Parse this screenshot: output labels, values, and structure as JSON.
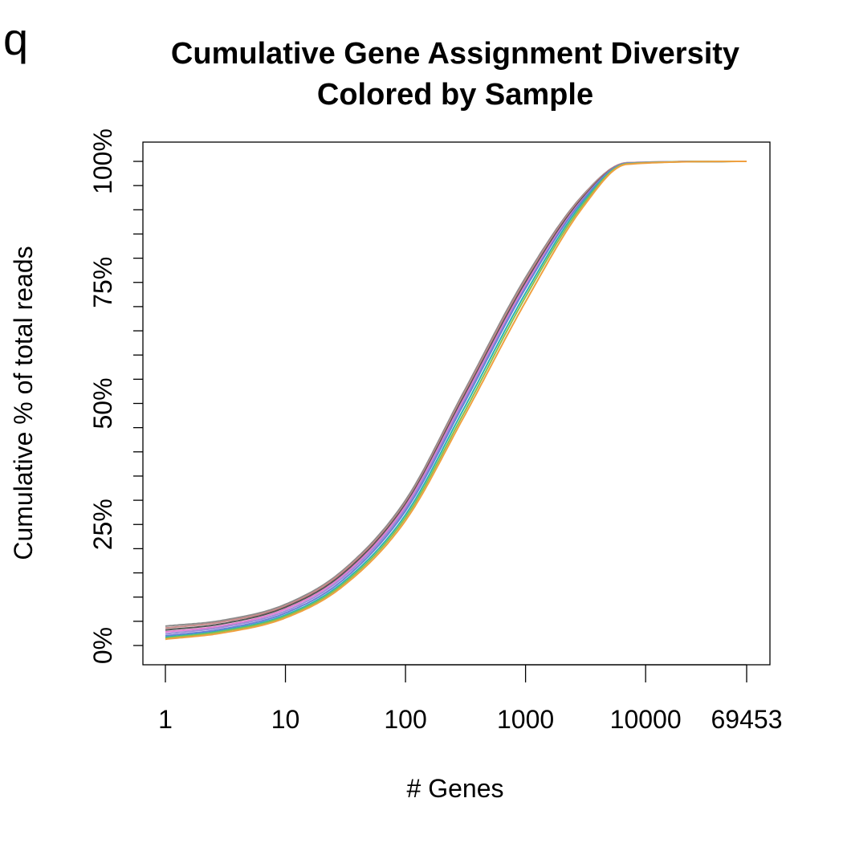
{
  "panel_label": "q",
  "chart_data": {
    "type": "line",
    "title": "Cumulative Gene Assignment Diversity",
    "subtitle": "Colored by Sample",
    "xlabel": "# Genes",
    "ylabel": "Cumulative % of total reads",
    "x_scale": "log",
    "xlim": [
      1,
      69453
    ],
    "ylim": [
      0,
      100
    ],
    "x_ticks": [
      1,
      10,
      100,
      1000,
      10000,
      69453
    ],
    "x_tick_labels": [
      "1",
      "10",
      "100",
      "1000",
      "10000",
      "69453"
    ],
    "y_ticks": [
      0,
      25,
      50,
      75,
      100
    ],
    "y_tick_labels": [
      "0%",
      "25%",
      "50%",
      "75%",
      "100%"
    ],
    "y_minor_ticks": [
      5,
      10,
      15,
      20,
      30,
      35,
      40,
      45,
      55,
      60,
      65,
      70,
      80,
      85,
      90,
      95
    ],
    "grid": false,
    "legend": "none",
    "series": [
      {
        "color": "#8c8c8c",
        "x": [
          1,
          3,
          10,
          30,
          100,
          300,
          1000,
          3000,
          7000,
          69453
        ],
        "y": [
          4.0,
          5.2,
          8.5,
          15.5,
          30.0,
          52.0,
          76.0,
          93.0,
          99.7,
          100
        ]
      },
      {
        "color": "#c98a8a",
        "x": [
          1,
          3,
          10,
          30,
          100,
          300,
          1000,
          3000,
          7000,
          69453
        ],
        "y": [
          3.6,
          4.9,
          8.2,
          15.2,
          29.5,
          51.5,
          75.5,
          92.8,
          99.7,
          100
        ]
      },
      {
        "color": "#555555",
        "x": [
          1,
          3,
          10,
          30,
          100,
          300,
          1000,
          3000,
          7000,
          69453
        ],
        "y": [
          3.2,
          4.5,
          7.9,
          14.8,
          29.2,
          51.0,
          75.0,
          92.5,
          99.6,
          100
        ]
      },
      {
        "color": "#e27bd0",
        "x": [
          1,
          3,
          10,
          30,
          100,
          300,
          1000,
          3000,
          7000,
          69453
        ],
        "y": [
          2.8,
          4.1,
          7.5,
          14.4,
          28.8,
          50.5,
          74.5,
          92.2,
          99.6,
          100
        ]
      },
      {
        "color": "#9a8cd8",
        "x": [
          1,
          3,
          10,
          30,
          100,
          300,
          1000,
          3000,
          7000,
          69453
        ],
        "y": [
          2.4,
          3.8,
          7.1,
          14.0,
          28.3,
          50.0,
          74.0,
          92.0,
          99.6,
          100
        ]
      },
      {
        "color": "#6a7fd6",
        "x": [
          1,
          3,
          10,
          30,
          100,
          300,
          1000,
          3000,
          7000,
          69453
        ],
        "y": [
          2.0,
          3.4,
          6.7,
          13.5,
          27.8,
          49.5,
          73.8,
          92.0,
          99.6,
          100
        ]
      },
      {
        "color": "#2bb5b0",
        "x": [
          1,
          3,
          10,
          30,
          100,
          300,
          1000,
          3000,
          7000,
          69453
        ],
        "y": [
          1.7,
          3.1,
          6.3,
          13.0,
          27.0,
          48.5,
          72.8,
          91.5,
          99.5,
          100
        ]
      },
      {
        "color": "#8fbf4a",
        "x": [
          1,
          3,
          10,
          30,
          100,
          300,
          1000,
          3000,
          7000,
          69453
        ],
        "y": [
          1.5,
          2.9,
          6.0,
          12.6,
          26.4,
          47.6,
          72.0,
          91.0,
          99.5,
          100
        ]
      },
      {
        "color": "#f0a040",
        "x": [
          1,
          3,
          10,
          30,
          100,
          300,
          1000,
          3000,
          7000,
          69453
        ],
        "y": [
          1.3,
          2.6,
          5.7,
          12.2,
          25.8,
          46.8,
          71.0,
          90.5,
          99.4,
          100
        ]
      }
    ]
  }
}
